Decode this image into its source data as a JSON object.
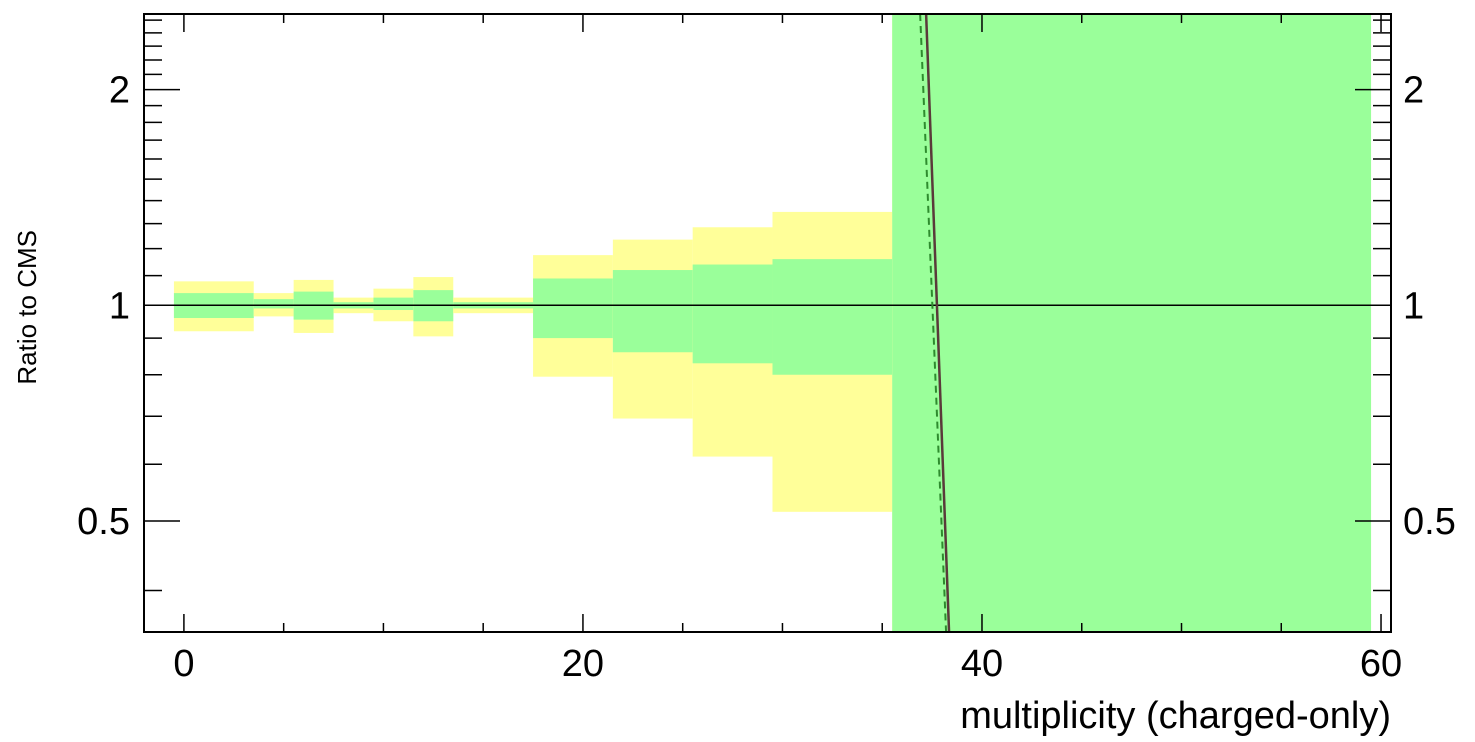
{
  "chart_data": {
    "type": "area",
    "xlabel": "multiplicity (charged-only)",
    "ylabel": "Ratio to CMS",
    "xlim": [
      -2,
      60.5
    ],
    "ylim": [
      0.35,
      2.55
    ],
    "y_scale": "log",
    "x_ticks": [
      0,
      20,
      40,
      60
    ],
    "y_ticks": [
      0.5,
      1,
      2
    ],
    "reference_line": 1,
    "colors": {
      "stat_band": "#9aff9a",
      "total_band": "#ffff99",
      "mc_line": "#5a3a3a",
      "mc_dashed": "#2e8b2e"
    },
    "bins": [
      {
        "x_lo": -0.5,
        "x_hi": 3.5,
        "stat_lo": 0.96,
        "stat_hi": 1.04,
        "tot_lo": 0.92,
        "tot_hi": 1.08
      },
      {
        "x_lo": 3.5,
        "x_hi": 5.5,
        "stat_lo": 0.99,
        "stat_hi": 1.02,
        "tot_lo": 0.965,
        "tot_hi": 1.04
      },
      {
        "x_lo": 5.5,
        "x_hi": 7.5,
        "stat_lo": 0.955,
        "stat_hi": 1.045,
        "tot_lo": 0.915,
        "tot_hi": 1.085
      },
      {
        "x_lo": 7.5,
        "x_hi": 9.5,
        "stat_lo": 0.99,
        "stat_hi": 1.01,
        "tot_lo": 0.975,
        "tot_hi": 1.025
      },
      {
        "x_lo": 9.5,
        "x_hi": 11.5,
        "stat_lo": 0.985,
        "stat_hi": 1.025,
        "tot_lo": 0.95,
        "tot_hi": 1.055
      },
      {
        "x_lo": 11.5,
        "x_hi": 13.5,
        "stat_lo": 0.95,
        "stat_hi": 1.05,
        "tot_lo": 0.905,
        "tot_hi": 1.095
      },
      {
        "x_lo": 13.5,
        "x_hi": 17.5,
        "stat_lo": 0.99,
        "stat_hi": 1.01,
        "tot_lo": 0.975,
        "tot_hi": 1.025
      },
      {
        "x_lo": 17.5,
        "x_hi": 21.5,
        "stat_lo": 0.9,
        "stat_hi": 1.09,
        "tot_lo": 0.795,
        "tot_hi": 1.175
      },
      {
        "x_lo": 21.5,
        "x_hi": 25.5,
        "stat_lo": 0.86,
        "stat_hi": 1.12,
        "tot_lo": 0.695,
        "tot_hi": 1.235
      },
      {
        "x_lo": 25.5,
        "x_hi": 29.5,
        "stat_lo": 0.83,
        "stat_hi": 1.14,
        "tot_lo": 0.615,
        "tot_hi": 1.285
      },
      {
        "x_lo": 29.5,
        "x_hi": 35.5,
        "stat_lo": 0.8,
        "stat_hi": 1.16,
        "tot_lo": 0.515,
        "tot_hi": 1.35
      },
      {
        "x_lo": 35.5,
        "x_hi": 59.5,
        "stat_lo": 0.35,
        "stat_hi": 2.55,
        "tot_lo": 0.35,
        "tot_hi": 2.55
      }
    ],
    "mc_line": {
      "x": [
        37.2,
        38.35
      ],
      "y": [
        2.55,
        0.35
      ]
    },
    "mc_dashed_line": {
      "x": [
        36.9,
        38.2
      ],
      "y": [
        2.55,
        0.35
      ]
    }
  }
}
